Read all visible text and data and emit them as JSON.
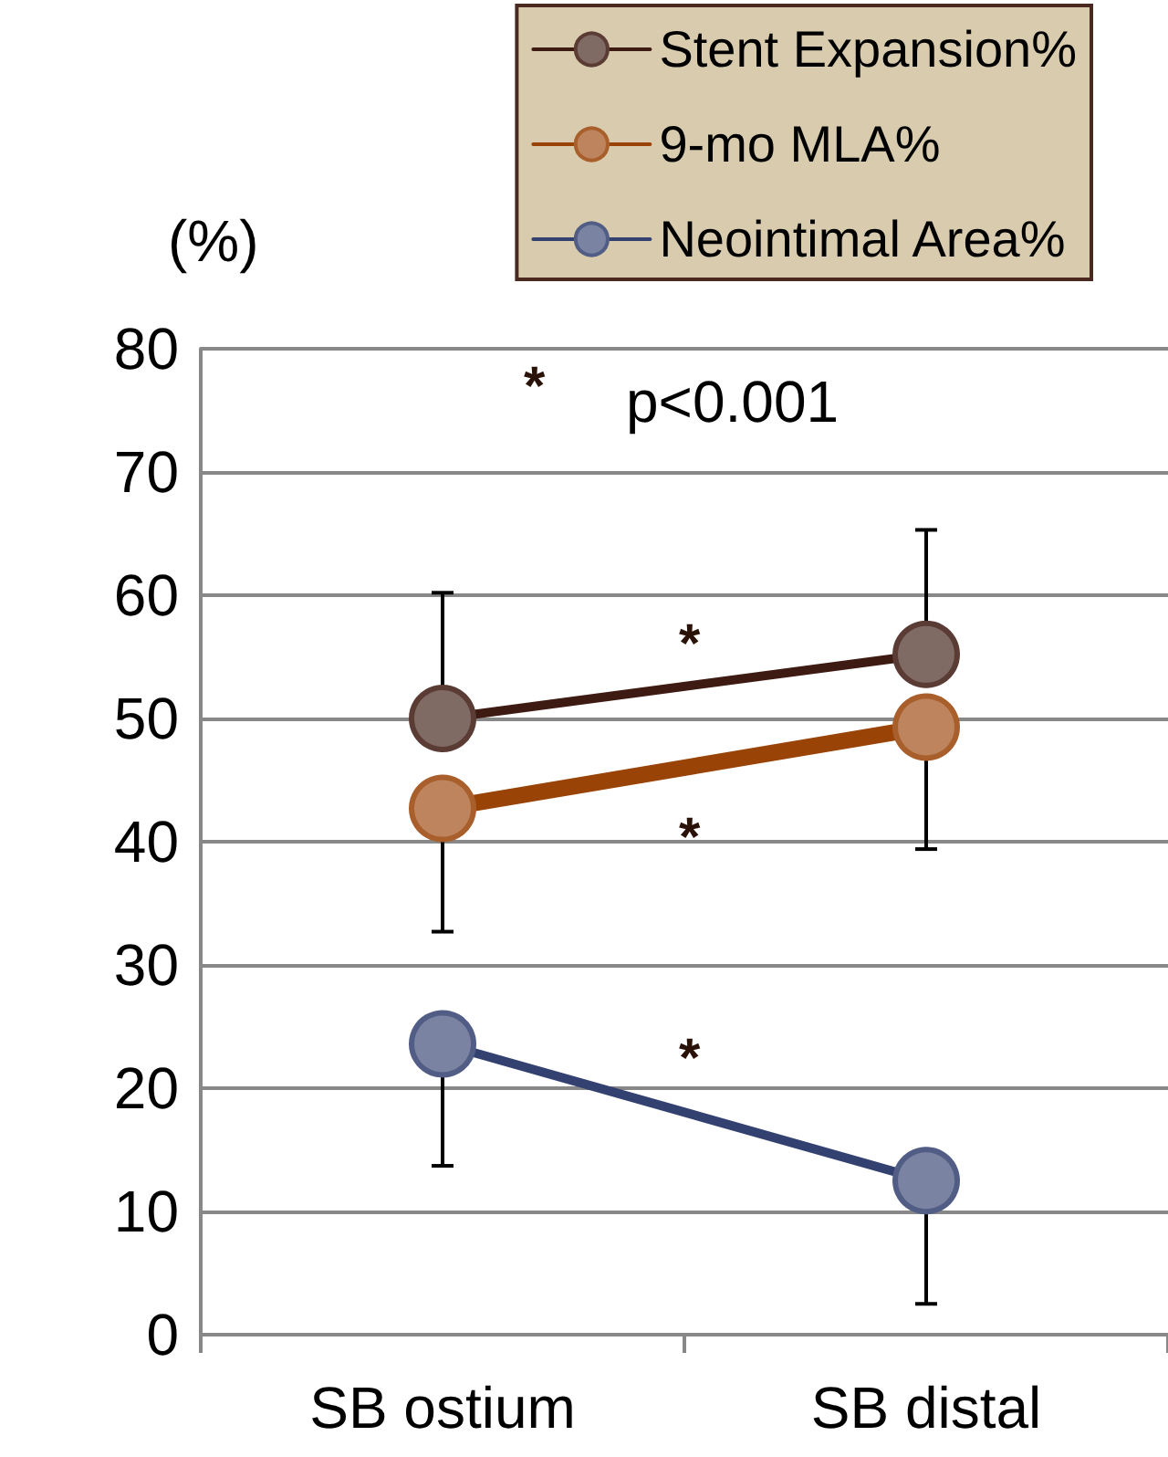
{
  "chart_data": {
    "type": "line",
    "ylabel": "(%)",
    "categories": [
      "SB ostium",
      "SB distal"
    ],
    "series": [
      {
        "name": "Stent Expansion%",
        "color": "#3d1a12",
        "values": [
          50,
          55.2
        ],
        "errors": [
          [
            50,
            60.2
          ],
          [
            55.2,
            65.3
          ]
        ]
      },
      {
        "name": "9-mo MLA%",
        "color": "#9a4307",
        "values": [
          42.7,
          49.3
        ],
        "errors": [
          [
            32.7,
            42.7
          ],
          [
            39.4,
            49.3
          ]
        ]
      },
      {
        "name": "Neointimal Area%",
        "color": "#334170",
        "values": [
          23.6,
          12.5
        ],
        "errors": [
          [
            13.7,
            23.6
          ],
          [
            2.5,
            12.5
          ]
        ]
      }
    ],
    "ylim": [
      0,
      80
    ],
    "yticks": [
      0,
      10,
      20,
      30,
      40,
      50,
      60,
      70,
      80
    ],
    "grid": "y",
    "legend": "top right",
    "marker": "circle",
    "line_style": "solid",
    "annotations": [
      "*",
      "p<0.001",
      "*",
      "*",
      "*"
    ]
  }
}
